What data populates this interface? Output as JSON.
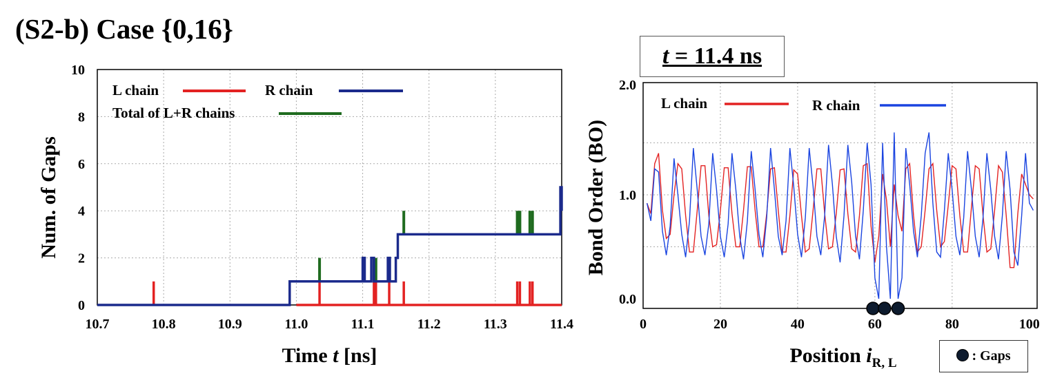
{
  "figure_title": "(S2-b) Case {0,16}",
  "time_label": {
    "prefix": "t",
    "rest": " = 11.4 ns"
  },
  "gaps_legend": ": Gaps",
  "chart_data": [
    {
      "type": "line",
      "xlabel": {
        "main": "Time ",
        "italic": "t",
        "unit": " [ns]"
      },
      "ylabel": "Num. of Gaps",
      "xlim": [
        10.7,
        11.4
      ],
      "ylim": [
        0,
        10
      ],
      "xticks": [
        "10.7",
        "10.8",
        "10.9",
        "11.0",
        "11.1",
        "11.2",
        "11.3",
        "11.4"
      ],
      "yticks": [
        "0",
        "2",
        "4",
        "6",
        "8",
        "10"
      ],
      "grid": true,
      "legend": [
        "L chain",
        "R chain",
        "Total of L+R chains"
      ],
      "colors": {
        "L": "#e32222",
        "R": "#1b2a8c",
        "T": "#1f6b1f"
      },
      "series": [
        {
          "name": "L chain",
          "kind": "spikes",
          "height": 1,
          "x": [
            10.785,
            11.035,
            11.117,
            11.12,
            11.14,
            11.162,
            11.333,
            11.337,
            11.352,
            11.356
          ]
        },
        {
          "name": "R chain",
          "kind": "step",
          "points": [
            [
              10.7,
              0
            ],
            [
              10.99,
              0
            ],
            [
              10.99,
              1
            ],
            [
              11.1,
              1
            ],
            [
              11.1,
              2
            ],
            [
              11.103,
              2
            ],
            [
              11.103,
              1
            ],
            [
              11.113,
              1
            ],
            [
              11.113,
              2
            ],
            [
              11.117,
              2
            ],
            [
              11.117,
              1
            ],
            [
              11.138,
              1
            ],
            [
              11.138,
              2
            ],
            [
              11.141,
              2
            ],
            [
              11.141,
              1
            ],
            [
              11.15,
              1
            ],
            [
              11.15,
              2
            ],
            [
              11.153,
              2
            ],
            [
              11.153,
              3
            ],
            [
              11.398,
              3
            ],
            [
              11.398,
              5
            ],
            [
              11.4,
              5
            ],
            [
              11.4,
              4
            ]
          ]
        },
        {
          "name": "Total of L+R chains",
          "kind": "spikes_range",
          "spikes": [
            [
              11.035,
              1,
              2
            ],
            [
              11.117,
              1,
              2
            ],
            [
              11.12,
              1,
              2
            ],
            [
              11.14,
              1,
              2
            ],
            [
              11.162,
              3,
              4
            ],
            [
              11.333,
              3,
              4
            ],
            [
              11.337,
              3,
              4
            ],
            [
              11.352,
              3,
              4
            ],
            [
              11.356,
              3,
              4
            ]
          ]
        }
      ]
    },
    {
      "type": "line",
      "xlabel": {
        "main": "Position ",
        "italic": "i",
        "sub": "R, L"
      },
      "ylabel": "Bond Order (BO)",
      "xlim": [
        0,
        102
      ],
      "ylim": [
        -0.05,
        2.0
      ],
      "xticks": [
        "0",
        "20",
        "40",
        "60",
        "80",
        "100"
      ],
      "yticks": [
        "0.0",
        "1.0",
        "2.0"
      ],
      "grid": true,
      "legend": [
        "L chain",
        "R chain"
      ],
      "colors": {
        "L": "#e32222",
        "R": "#1a44e0"
      },
      "gaps_x": [
        59.5,
        62.5,
        66
      ],
      "series": [
        {
          "name": "L chain",
          "x": [
            1,
            2,
            3,
            4,
            5,
            6,
            7,
            8,
            9,
            10,
            11,
            12,
            13,
            14,
            15,
            16,
            17,
            18,
            19,
            20,
            21,
            22,
            23,
            24,
            25,
            26,
            27,
            28,
            29,
            30,
            31,
            32,
            33,
            34,
            35,
            36,
            37,
            38,
            39,
            40,
            41,
            42,
            43,
            44,
            45,
            46,
            47,
            48,
            49,
            50,
            51,
            52,
            53,
            54,
            55,
            56,
            57,
            58,
            59,
            60,
            61,
            62,
            63,
            64,
            65,
            66,
            67,
            68,
            69,
            70,
            71,
            72,
            73,
            74,
            75,
            76,
            77,
            78,
            79,
            80,
            81,
            82,
            83,
            84,
            85,
            86,
            87,
            88,
            89,
            90,
            91,
            92,
            93,
            94,
            95,
            96,
            97,
            98,
            99,
            100,
            101
          ],
          "y": [
            0.92,
            0.82,
            1.3,
            1.4,
            0.85,
            0.58,
            0.62,
            1.0,
            1.3,
            1.25,
            0.8,
            0.45,
            0.45,
            0.85,
            1.28,
            1.28,
            0.8,
            0.5,
            0.52,
            0.85,
            1.26,
            1.26,
            0.82,
            0.5,
            0.5,
            0.85,
            1.27,
            1.27,
            0.85,
            0.5,
            0.5,
            0.82,
            1.25,
            1.26,
            0.85,
            0.45,
            0.45,
            0.8,
            1.24,
            1.2,
            0.8,
            0.45,
            0.48,
            0.85,
            1.25,
            1.25,
            0.82,
            0.48,
            0.5,
            0.82,
            1.24,
            1.25,
            0.82,
            0.48,
            0.45,
            0.8,
            1.28,
            1.3,
            0.7,
            0.35,
            0.6,
            1.2,
            0.95,
            0.5,
            1.1,
            0.8,
            0.65,
            1.25,
            1.3,
            0.8,
            0.45,
            0.5,
            0.85,
            1.25,
            1.3,
            0.85,
            0.5,
            0.55,
            0.9,
            1.28,
            1.25,
            0.8,
            0.45,
            0.45,
            0.88,
            1.28,
            1.25,
            0.8,
            0.45,
            0.48,
            0.85,
            1.28,
            1.22,
            0.8,
            0.3,
            0.3,
            0.82,
            1.2,
            1.1,
            1.0,
            0.96
          ]
        },
        {
          "name": "R chain",
          "x": [
            1,
            2,
            3,
            4,
            5,
            6,
            7,
            8,
            9,
            10,
            11,
            12,
            13,
            14,
            15,
            16,
            17,
            18,
            19,
            20,
            21,
            22,
            23,
            24,
            25,
            26,
            27,
            28,
            29,
            30,
            31,
            32,
            33,
            34,
            35,
            36,
            37,
            38,
            39,
            40,
            41,
            42,
            43,
            44,
            45,
            46,
            47,
            48,
            49,
            50,
            51,
            52,
            53,
            54,
            55,
            56,
            57,
            58,
            59,
            60,
            61,
            62,
            63,
            64,
            65,
            66,
            67,
            68,
            69,
            70,
            71,
            72,
            73,
            74,
            75,
            76,
            77,
            78,
            79,
            80,
            81,
            82,
            83,
            84,
            85,
            86,
            87,
            88,
            89,
            90,
            91,
            92,
            93,
            94,
            95,
            96,
            97,
            98,
            99,
            100,
            101
          ],
          "y": [
            0.92,
            0.75,
            1.25,
            1.22,
            0.65,
            0.42,
            0.7,
            1.35,
            1.0,
            0.62,
            0.4,
            0.75,
            1.45,
            1.05,
            0.6,
            0.42,
            0.72,
            1.4,
            1.05,
            0.6,
            0.4,
            0.72,
            1.4,
            1.05,
            0.6,
            0.38,
            0.75,
            1.42,
            1.05,
            0.62,
            0.4,
            0.78,
            1.45,
            1.05,
            0.6,
            0.42,
            0.75,
            1.45,
            1.08,
            0.62,
            0.4,
            0.78,
            1.45,
            1.08,
            0.6,
            0.42,
            0.8,
            1.48,
            1.1,
            0.6,
            0.35,
            0.8,
            1.48,
            1.12,
            0.6,
            0.38,
            0.85,
            1.5,
            1.1,
            0.2,
            0.0,
            1.5,
            0.5,
            0.0,
            1.6,
            0.0,
            0.2,
            1.45,
            1.1,
            0.65,
            0.4,
            0.8,
            1.4,
            1.6,
            0.92,
            0.45,
            0.4,
            0.85,
            1.4,
            1.05,
            0.6,
            0.42,
            0.78,
            1.42,
            1.05,
            0.6,
            0.4,
            0.78,
            1.4,
            1.05,
            0.6,
            0.38,
            0.8,
            1.42,
            1.05,
            0.45,
            0.32,
            0.8,
            1.4,
            0.92,
            0.85
          ]
        }
      ]
    }
  ]
}
